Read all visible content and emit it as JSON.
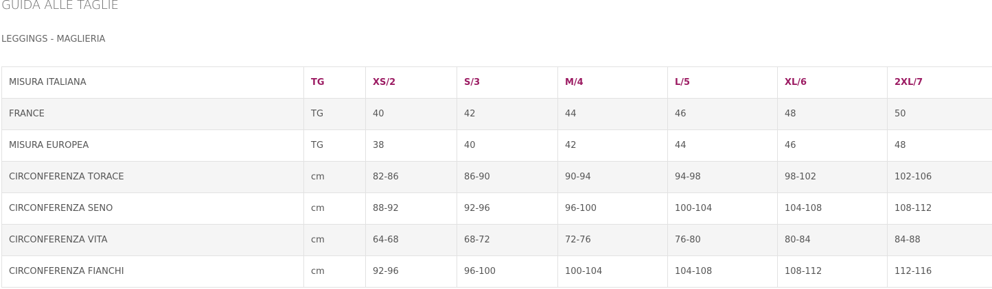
{
  "title": "GUIDA ALLE TAGLIE",
  "subtitle": "LEGGINGS - MAGLIERIA",
  "accent_color": "#9c1c63",
  "table": {
    "header": [
      "MISURA ITALIANA",
      "TG",
      "XS/2",
      "S/3",
      "M/4",
      "L/5",
      "XL/6",
      "2XL/7"
    ],
    "rows": [
      [
        "FRANCE",
        "TG",
        "40",
        "42",
        "44",
        "46",
        "48",
        "50"
      ],
      [
        "MISURA EUROPEA",
        "TG",
        "38",
        "40",
        "42",
        "44",
        "46",
        "48"
      ],
      [
        "CIRCONFERENZA TORACE",
        "cm",
        "82-86",
        "86-90",
        "90-94",
        "94-98",
        "98-102",
        "102-106"
      ],
      [
        "CIRCONFERENZA SENO",
        "cm",
        "88-92",
        "92-96",
        "96-100",
        "100-104",
        "104-108",
        "108-112"
      ],
      [
        "CIRCONFERENZA VITA",
        "cm",
        "64-68",
        "68-72",
        "72-76",
        "76-80",
        "80-84",
        "84-88"
      ],
      [
        "CIRCONFERENZA FIANCHI",
        "cm",
        "92-96",
        "96-100",
        "100-104",
        "104-108",
        "108-112",
        "112-116"
      ]
    ]
  }
}
